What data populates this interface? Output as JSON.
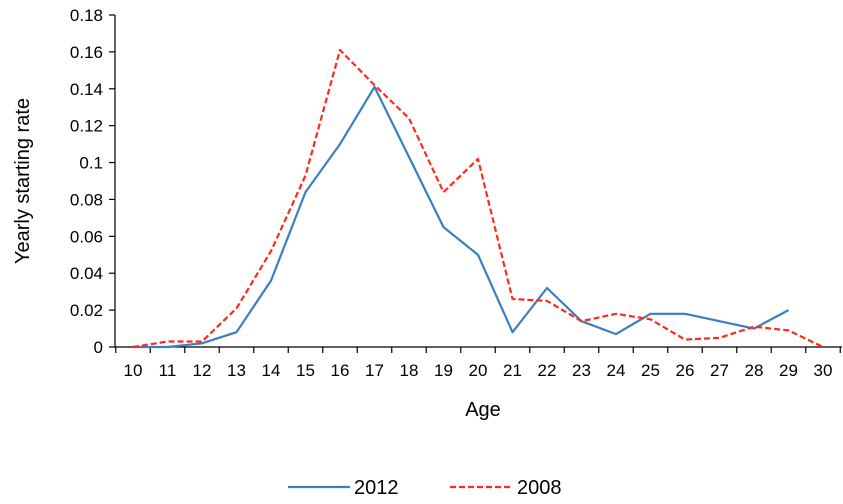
{
  "chart_data": {
    "type": "line",
    "title": "",
    "xlabel": "Age",
    "ylabel": "Yearly starting rate",
    "x": [
      10,
      11,
      12,
      13,
      14,
      15,
      16,
      17,
      18,
      19,
      20,
      21,
      22,
      23,
      24,
      25,
      26,
      27,
      28,
      29,
      30
    ],
    "x_tick_labels": [
      "10",
      "11",
      "12",
      "13",
      "14",
      "15",
      "16",
      "17",
      "18",
      "19",
      "20",
      "21",
      "22",
      "23",
      "24",
      "25",
      "26",
      "27",
      "28",
      "29",
      "30"
    ],
    "y_tick_labels": [
      "0",
      "0.02",
      "0.04",
      "0.06",
      "0.08",
      "0.1",
      "0.12",
      "0.14",
      "0.16",
      "0.18"
    ],
    "ylim": [
      0,
      0.18
    ],
    "grid": false,
    "legend_position": "bottom-center",
    "series": [
      {
        "name": "2012",
        "color": "#3A7FBF",
        "style": "solid",
        "values": [
          0.0,
          0.0,
          0.002,
          0.008,
          0.036,
          0.084,
          0.11,
          0.141,
          0.103,
          0.065,
          0.05,
          0.008,
          0.032,
          0.014,
          0.007,
          0.018,
          0.018,
          0.014,
          0.01,
          0.02,
          null
        ]
      },
      {
        "name": "2008",
        "color": "#FF2A1A",
        "style": "dashed",
        "values": [
          0.0,
          0.003,
          0.003,
          0.021,
          0.052,
          0.093,
          0.161,
          0.142,
          0.124,
          0.084,
          0.102,
          0.026,
          0.025,
          0.014,
          0.018,
          0.015,
          0.004,
          0.005,
          0.011,
          0.009,
          0.0
        ]
      }
    ]
  }
}
